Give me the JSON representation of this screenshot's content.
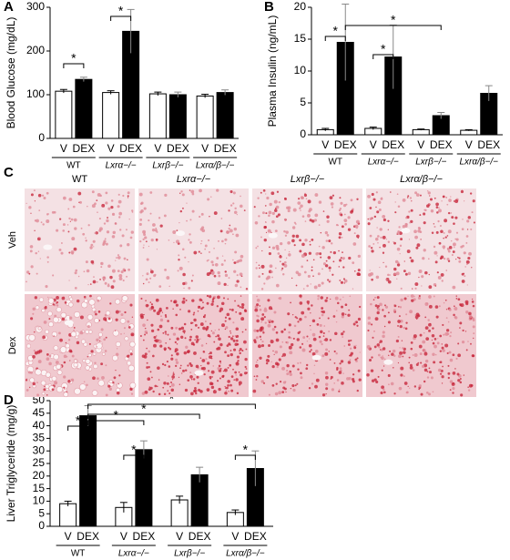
{
  "chart_data": [
    {
      "type": "bar",
      "panel": "A",
      "y_label": "Blood Glucose (mg/dL)",
      "groups": [
        "WT",
        "Lxrα−/−",
        "Lxrβ−/−",
        "Lxrα/β−/−"
      ],
      "series": [
        {
          "name": "V",
          "color": "#ffffff",
          "values": [
            108,
            105,
            102,
            97
          ],
          "errors": [
            4,
            4,
            4,
            4
          ]
        },
        {
          "name": "DEX",
          "color": "#000000",
          "values": [
            135,
            245,
            100,
            105
          ],
          "errors": [
            5,
            50,
            6,
            6
          ]
        }
      ],
      "ylim": [
        0,
        300
      ],
      "yticks": [
        0,
        100,
        200,
        300
      ],
      "annotations": [
        "*",
        "*"
      ]
    },
    {
      "type": "bar",
      "panel": "B",
      "y_label": "Plasma Insulin (ng/mL)",
      "groups": [
        "WT",
        "Lxrα−/−",
        "Lxrβ−/−",
        "Lxrα/β−/−"
      ],
      "series": [
        {
          "name": "V",
          "color": "#ffffff",
          "values": [
            0.8,
            1.0,
            0.8,
            0.7
          ],
          "errors": [
            0.2,
            0.2,
            0.1,
            0.1
          ]
        },
        {
          "name": "DEX",
          "color": "#000000",
          "values": [
            14.5,
            12.2,
            3.0,
            6.5
          ],
          "errors": [
            6,
            5,
            0.5,
            1.2
          ]
        }
      ],
      "ylim": [
        0,
        20
      ],
      "yticks": [
        0,
        5,
        10,
        15,
        20
      ],
      "annotations": [
        "*",
        "*",
        "*"
      ]
    },
    {
      "type": "bar",
      "panel": "D",
      "y_label": "Liver Triglyceride (mg/g)",
      "groups": [
        "WT",
        "Lxrα−/−",
        "Lxrβ−/−",
        "Lxrα/β−/−"
      ],
      "series": [
        {
          "name": "V",
          "color": "#ffffff",
          "values": [
            9,
            7.5,
            10.5,
            5.5
          ],
          "errors": [
            1,
            2,
            1.5,
            1
          ]
        },
        {
          "name": "DEX",
          "color": "#000000",
          "values": [
            44,
            30.5,
            20.5,
            23
          ],
          "errors": [
            4,
            3.5,
            3,
            7
          ]
        }
      ],
      "ylim": [
        0,
        50
      ],
      "yticks": [
        0,
        5,
        10,
        15,
        20,
        25,
        30,
        35,
        40,
        45,
        50
      ],
      "annotations": [
        "*",
        "*",
        "*",
        "*",
        "*",
        "*"
      ]
    }
  ],
  "micrographs": {
    "panel": "C",
    "columns": [
      "WT",
      "Lxrα−/−",
      "Lxrβ−/−",
      "Lxrα/β−/−"
    ],
    "rows": [
      "Veh",
      "Dex"
    ]
  }
}
